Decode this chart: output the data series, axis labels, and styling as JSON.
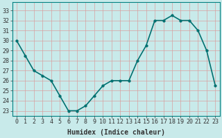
{
  "x": [
    0,
    1,
    2,
    3,
    4,
    5,
    6,
    7,
    8,
    9,
    10,
    11,
    12,
    13,
    14,
    15,
    16,
    17,
    18,
    19,
    20,
    21,
    22,
    23
  ],
  "y": [
    30,
    28.5,
    27,
    26.5,
    26,
    24.5,
    23,
    23,
    23.5,
    24.5,
    25.5,
    26,
    26,
    26,
    28,
    29.5,
    32,
    32,
    32.5,
    32,
    32,
    31,
    29,
    25.5
  ],
  "line_color": "#007070",
  "marker_color": "#007070",
  "bg_color": "#c8eaea",
  "grid_color": "#e8f8f8",
  "xlabel": "Humidex (Indice chaleur)",
  "yticks": [
    23,
    24,
    25,
    26,
    27,
    28,
    29,
    30,
    31,
    32,
    33
  ],
  "ylim": [
    22.5,
    33.8
  ],
  "xlim": [
    -0.5,
    23.5
  ],
  "xticks": [
    0,
    1,
    2,
    3,
    4,
    5,
    6,
    7,
    8,
    9,
    10,
    11,
    12,
    13,
    14,
    15,
    16,
    17,
    18,
    19,
    20,
    21,
    22,
    23
  ],
  "xlabel_fontsize": 7,
  "tick_fontsize": 6,
  "line_width": 1.2,
  "marker_size": 2.5
}
